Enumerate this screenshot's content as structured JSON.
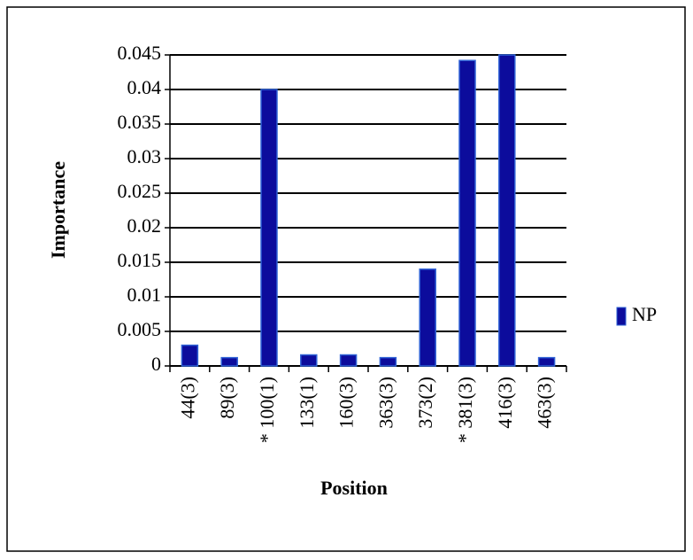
{
  "chart_data": {
    "type": "bar",
    "x_label": "Position",
    "y_label": "Importance",
    "categories": [
      "44(3)",
      "89(3)",
      "* 100(1)",
      "133(1)",
      "160(3)",
      "363(3)",
      "373(2)",
      "* 381(3)",
      "416(3)",
      "463(3)"
    ],
    "series": [
      {
        "name": "NP",
        "color": "#0c0c9c",
        "values": [
          0.003,
          0.0012,
          0.04,
          0.0016,
          0.0016,
          0.0012,
          0.014,
          0.0442,
          0.045,
          0.0012
        ]
      }
    ],
    "ylim": [
      0,
      0.045
    ],
    "yticks": [
      0,
      0.005,
      0.01,
      0.015,
      0.02,
      0.025,
      0.03,
      0.035,
      0.04,
      0.045
    ],
    "grid": true,
    "legend": "right"
  }
}
